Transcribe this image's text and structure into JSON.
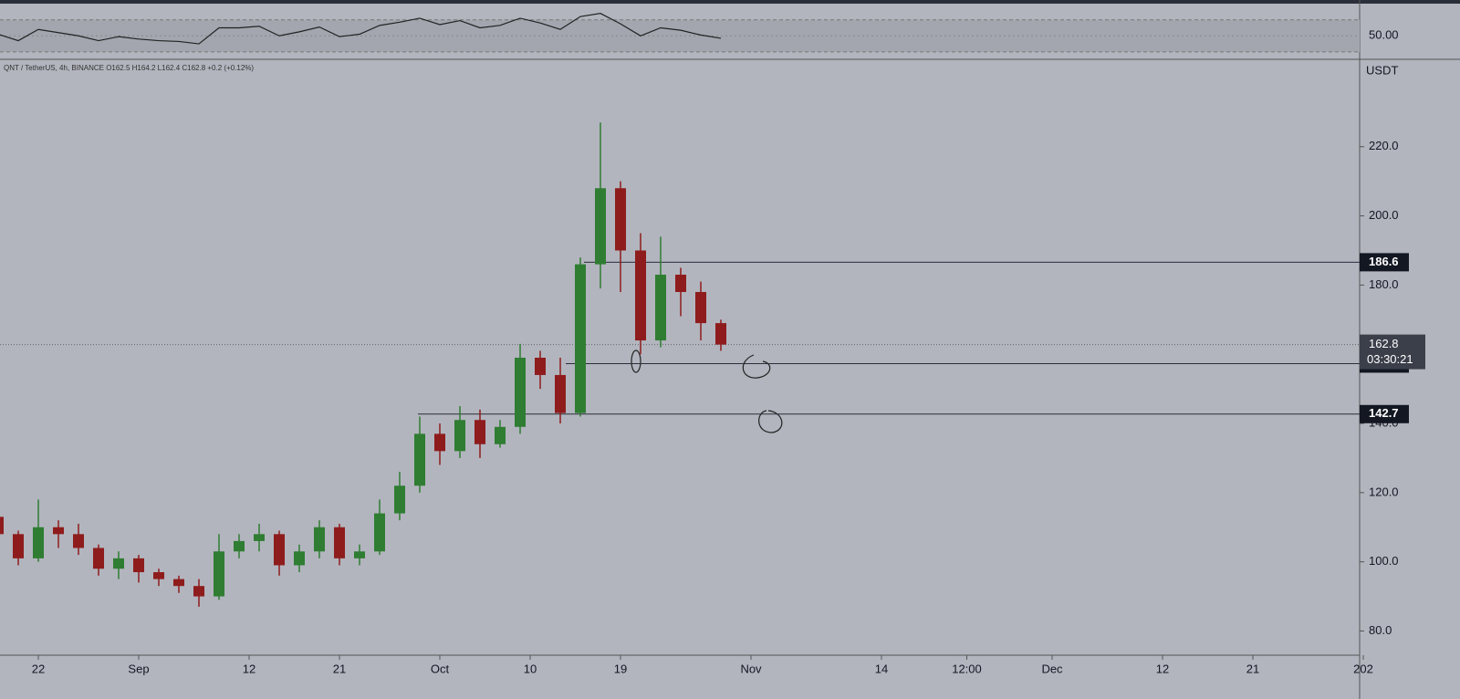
{
  "chart_data": {
    "type": "candlestick",
    "legend_text": "QNT / TetherUS, 4h, BINANCE O162.5 H164.2 L162.4 C162.8 +0.2 (+0.12%)",
    "currency": "USDT",
    "up_color": "#2f7d32",
    "down_color": "#8e1c1c",
    "x": [
      "08-18",
      "08-20",
      "08-22",
      "08-24",
      "08-26",
      "08-28",
      "08-30",
      "09-01",
      "09-03",
      "09-05",
      "09-07",
      "09-09",
      "09-11",
      "09-13",
      "09-15",
      "09-17",
      "09-19",
      "09-21",
      "09-23",
      "09-25",
      "09-27",
      "09-29",
      "10-01",
      "10-03",
      "10-05",
      "10-07",
      "10-09",
      "10-11",
      "10-13",
      "10-15",
      "10-17",
      "10-19",
      "10-21",
      "10-23",
      "10-25",
      "10-27",
      "10-29"
    ],
    "open": [
      113,
      108,
      101,
      110,
      108,
      104,
      98,
      101,
      97,
      95,
      93,
      90,
      103,
      106,
      108,
      99,
      103,
      110,
      101,
      103,
      114,
      122,
      137,
      132,
      141,
      134,
      139,
      159,
      154,
      143,
      186,
      208,
      190,
      164,
      183,
      178,
      169
    ],
    "high": [
      115,
      109,
      118,
      112,
      111,
      105,
      103,
      102,
      98,
      96,
      95,
      108,
      108,
      111,
      109,
      105,
      112,
      111,
      105,
      118,
      126,
      142,
      140,
      145,
      144,
      141,
      163,
      161,
      159,
      188,
      227,
      210,
      195,
      194,
      185,
      181,
      170
    ],
    "low": [
      104,
      99,
      100,
      104,
      102,
      96,
      95,
      94,
      93,
      91,
      87,
      89,
      101,
      103,
      96,
      97,
      101,
      99,
      99,
      102,
      112,
      120,
      128,
      130,
      130,
      133,
      137,
      150,
      140,
      142,
      179,
      178,
      160,
      162,
      171,
      164,
      161
    ],
    "close": [
      108,
      101,
      110,
      108,
      104,
      98,
      101,
      97,
      95,
      93,
      90,
      103,
      106,
      108,
      99,
      103,
      110,
      101,
      103,
      114,
      122,
      137,
      132,
      141,
      134,
      139,
      159,
      154,
      143,
      186,
      208,
      190,
      164,
      183,
      178,
      169,
      162.8
    ],
    "ylim": [
      73,
      245
    ],
    "yticks": [
      {
        "value": 80,
        "label": "80.0"
      },
      {
        "value": 100,
        "label": "100.0"
      },
      {
        "value": 120,
        "label": "120.0"
      },
      {
        "value": 140,
        "label": "140.0"
      },
      {
        "value": 160,
        "label": "160.0"
      },
      {
        "value": 180,
        "label": "180.0"
      },
      {
        "value": 200,
        "label": "200.0"
      },
      {
        "value": 220,
        "label": "220.0"
      }
    ],
    "xticks": [
      {
        "value": "08-22",
        "label": "22"
      },
      {
        "value": "09-01",
        "label": "Sep"
      },
      {
        "value": "09-12",
        "label": "12"
      },
      {
        "value": "09-21",
        "label": "21"
      },
      {
        "value": "10-01",
        "label": "Oct"
      },
      {
        "value": "10-10",
        "label": "10"
      },
      {
        "value": "10-19",
        "label": "19"
      },
      {
        "value": "11-01",
        "label": "Nov"
      },
      {
        "value": "11-14",
        "label": "14"
      },
      {
        "value": "11-22T12:00",
        "label": "12:00"
      },
      {
        "value": "12-01",
        "label": "Dec"
      },
      {
        "value": "12-12",
        "label": "12"
      },
      {
        "value": "12-21",
        "label": "21"
      },
      {
        "value": "01-01",
        "label": "202"
      }
    ],
    "levels": [
      186.6,
      157.3,
      142.7
    ],
    "last_price": 162.8,
    "countdown": "03:30:21",
    "rsi": {
      "values": [
        52,
        44,
        58,
        54,
        50,
        44,
        49,
        46,
        44,
        43,
        40,
        60,
        60,
        62,
        50,
        55,
        61,
        49,
        52,
        63,
        67,
        72,
        64,
        69,
        60,
        63,
        72,
        66,
        58,
        74,
        78,
        65,
        50,
        60,
        57,
        51,
        47
      ],
      "ylim": [
        23,
        89
      ],
      "yticks": [
        {
          "value": 50,
          "label": "50.00"
        }
      ],
      "bands": [
        30,
        70
      ],
      "color": "#222"
    }
  }
}
